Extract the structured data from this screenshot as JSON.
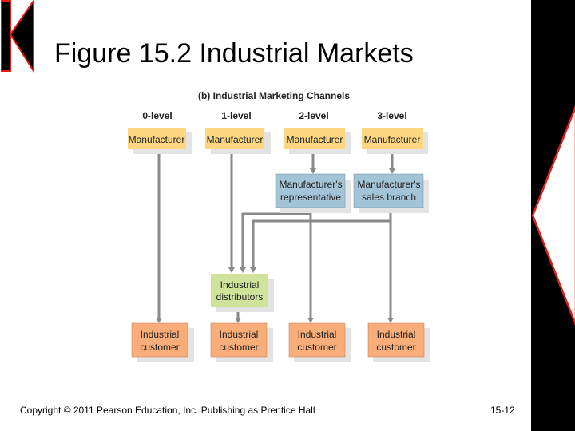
{
  "slide": {
    "title": "Figure 15.2 Industrial Markets",
    "copyright": "Copyright © 2011 Pearson Education, Inc.  Publishing as Prentice Hall",
    "page_number": "15-12"
  },
  "nav": {
    "back_icon": "previous-slide-icon",
    "forward_icon": "next-slide-icon"
  },
  "colors": {
    "manufacturer": "#fcd680",
    "intermediary": "#a3c4d6",
    "distributor": "#cfe39a",
    "customer": "#f9ad78",
    "accent": "#e41b17"
  },
  "diagram": {
    "title": "(b) Industrial Marketing Channels",
    "levels": [
      "0-level",
      "1-level",
      "2-level",
      "3-level"
    ],
    "manufacturer": "Manufacturer",
    "rep": [
      "Manufacturer's",
      "representative"
    ],
    "branch": [
      "Manufacturer's",
      "sales branch"
    ],
    "distributor": [
      "Industrial",
      "distributors"
    ],
    "customer": [
      "Industrial",
      "customer"
    ]
  }
}
